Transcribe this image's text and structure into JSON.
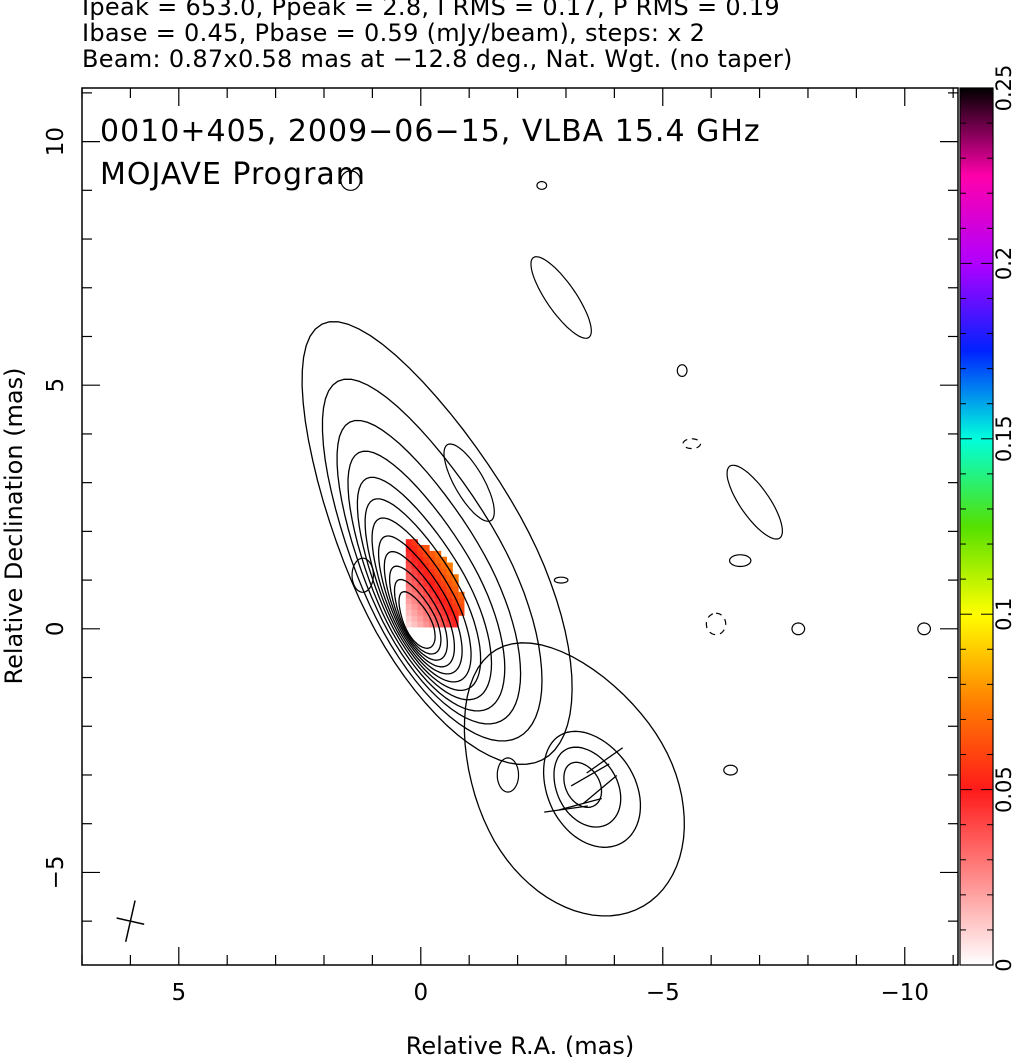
{
  "header": {
    "line1": "Ipeak = 653.0, Ppeak = 2.8, I RMS = 0.17, P RMS = 0.19",
    "line2": "Ibase = 0.45, Pbase = 0.59 (mJy/beam), steps: x 2",
    "line3": "Beam: 0.87x0.58 mas at −12.8 deg., Nat. Wgt. (no taper)"
  },
  "plot_text": {
    "line1": "0010+405, 2009−06−15, VLBA 15.4 GHz",
    "line2": "MOJAVE Program"
  },
  "chart_data": {
    "type": "contour",
    "xlabel": "Relative R.A. (mas)",
    "ylabel": "Relative Declination (mas)",
    "xlim": [
      7.0,
      -11.1
    ],
    "ylim": [
      -6.9,
      11.1
    ],
    "x_ticks": [
      {
        "value": 5,
        "label": "5"
      },
      {
        "value": 0,
        "label": "0"
      },
      {
        "value": -5,
        "label": "−5"
      },
      {
        "value": -10,
        "label": "−10"
      }
    ],
    "y_ticks": [
      {
        "value": 10,
        "label": "10"
      },
      {
        "value": 5,
        "label": "5"
      },
      {
        "value": 0,
        "label": "0"
      },
      {
        "value": -5,
        "label": "−5"
      }
    ],
    "colorbar": {
      "label_values": [
        "0",
        "0.05",
        "0.1",
        "0.15",
        "0.2",
        "0.25"
      ],
      "range": [
        0,
        0.25
      ],
      "stops": [
        [
          0.0,
          "#ffffff"
        ],
        [
          0.1,
          "#ff8a8a"
        ],
        [
          0.2,
          "#ff1a1a"
        ],
        [
          0.3,
          "#ff8000"
        ],
        [
          0.4,
          "#ffff00"
        ],
        [
          0.5,
          "#55e000"
        ],
        [
          0.6,
          "#00ffdd"
        ],
        [
          0.7,
          "#0022ff"
        ],
        [
          0.8,
          "#b000ff"
        ],
        [
          0.9,
          "#ff00aa"
        ],
        [
          1.0,
          "#000000"
        ]
      ]
    },
    "core": {
      "center": [
        0.05,
        0.1
      ],
      "levels": [
        0.35,
        0.43,
        0.52,
        0.62,
        0.73,
        0.86,
        1.0,
        1.16,
        1.36,
        1.6,
        1.93,
        2.4
      ]
    },
    "jet_component": {
      "center": [
        -3.35,
        -3.4
      ],
      "levels": [
        0.35,
        0.62,
        0.9,
        2.0
      ]
    },
    "evpa_ticks": [
      {
        "x": -3.7,
        "y": -3.3,
        "angle": 40
      },
      {
        "x": -3.3,
        "y": -3.6,
        "angle": 15
      },
      {
        "x": -3.0,
        "y": -3.7,
        "angle": 8
      },
      {
        "x": -3.8,
        "y": -2.7,
        "angle": 35
      },
      {
        "x": -3.5,
        "y": -3.0,
        "angle": 30
      }
    ],
    "beam": {
      "x": 6.0,
      "y": -6.0,
      "major": 0.87,
      "minor": 0.58,
      "pa": -12.8
    }
  }
}
